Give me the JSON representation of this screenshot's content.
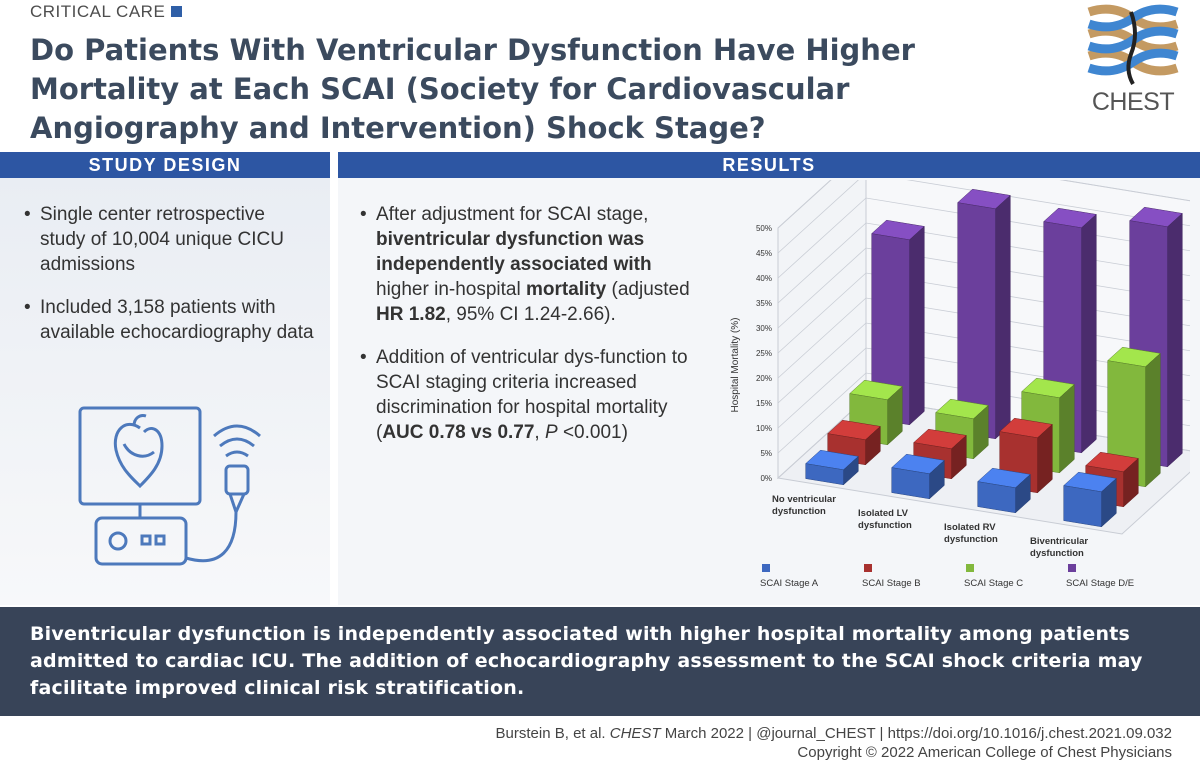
{
  "header": {
    "kicker": "CRITICAL CARE",
    "title": "Do Patients With Ventricular Dysfunction Have Higher Mortality at Each SCAI (Society for Cardiovascular Angiography and Intervention) Shock Stage?",
    "logo_text": "CHEST",
    "accent_color": "#2d56a3"
  },
  "study_design": {
    "heading": "STUDY DESIGN",
    "bullets": [
      "Single center retrospective study of 10,004 unique CICU admissions",
      "Included 3,158 patients with available echocardiography data"
    ]
  },
  "results": {
    "heading": "RESULTS",
    "bullet1": {
      "p1": "After adjustment for SCAI stage, ",
      "b1": "biventricular dysfunction was independently associated with",
      "p2": " higher in-hospital ",
      "b2": "mortality",
      "p3": " (adjusted ",
      "b3": "HR 1.82",
      "p4": ", 95% CI 1.24-2.66)."
    },
    "bullet2": {
      "p1": "Addition of ventricular dys-function to SCAI staging criteria increased discrimination for hospital mortality (",
      "b1": "AUC 0.78 vs 0.77",
      "p2": ", ",
      "i1": "P",
      "p3": " <0.001)"
    }
  },
  "chart_data": {
    "type": "bar",
    "ylabel": "Hospital Mortality (%)",
    "ylim": [
      0,
      50
    ],
    "yticks": [
      "0%",
      "5%",
      "10%",
      "15%",
      "20%",
      "25%",
      "30%",
      "35%",
      "40%",
      "45%",
      "50%"
    ],
    "categories": [
      [
        "No ventricular",
        "dysfunction"
      ],
      [
        "Isolated LV",
        "dysfunction"
      ],
      [
        "Isolated RV",
        "dysfunction"
      ],
      [
        "Biventricular",
        "dysfunction"
      ]
    ],
    "series": [
      {
        "name": "SCAI Stage A",
        "color": "#3d68c0",
        "values": [
          3,
          5,
          5,
          7
        ]
      },
      {
        "name": "SCAI Stage B",
        "color": "#a8312f",
        "values": [
          5,
          6,
          11,
          7
        ]
      },
      {
        "name": "SCAI Stage C",
        "color": "#82b83d",
        "values": [
          9,
          8,
          15,
          24
        ]
      },
      {
        "name": "SCAI Stage D/E",
        "color": "#6b3f9c",
        "values": [
          37,
          46,
          45,
          48
        ]
      }
    ],
    "grid": true,
    "legend": "bottom"
  },
  "summary": "Biventricular dysfunction is independently associated with higher hospital mortality among patients admitted to cardiac ICU. The addition of echocardiography assessment to the SCAI shock criteria may facilitate improved clinical risk stratification.",
  "footer": {
    "cite_pre": "Burstein B, et al. ",
    "journal": "CHEST",
    "cite_post": " March 2022  |  @journal_CHEST  |  https://doi.org/10.1016/j.chest.2021.09.032",
    "copyright": "Copyright © 2022 American College of Chest Physicians"
  }
}
